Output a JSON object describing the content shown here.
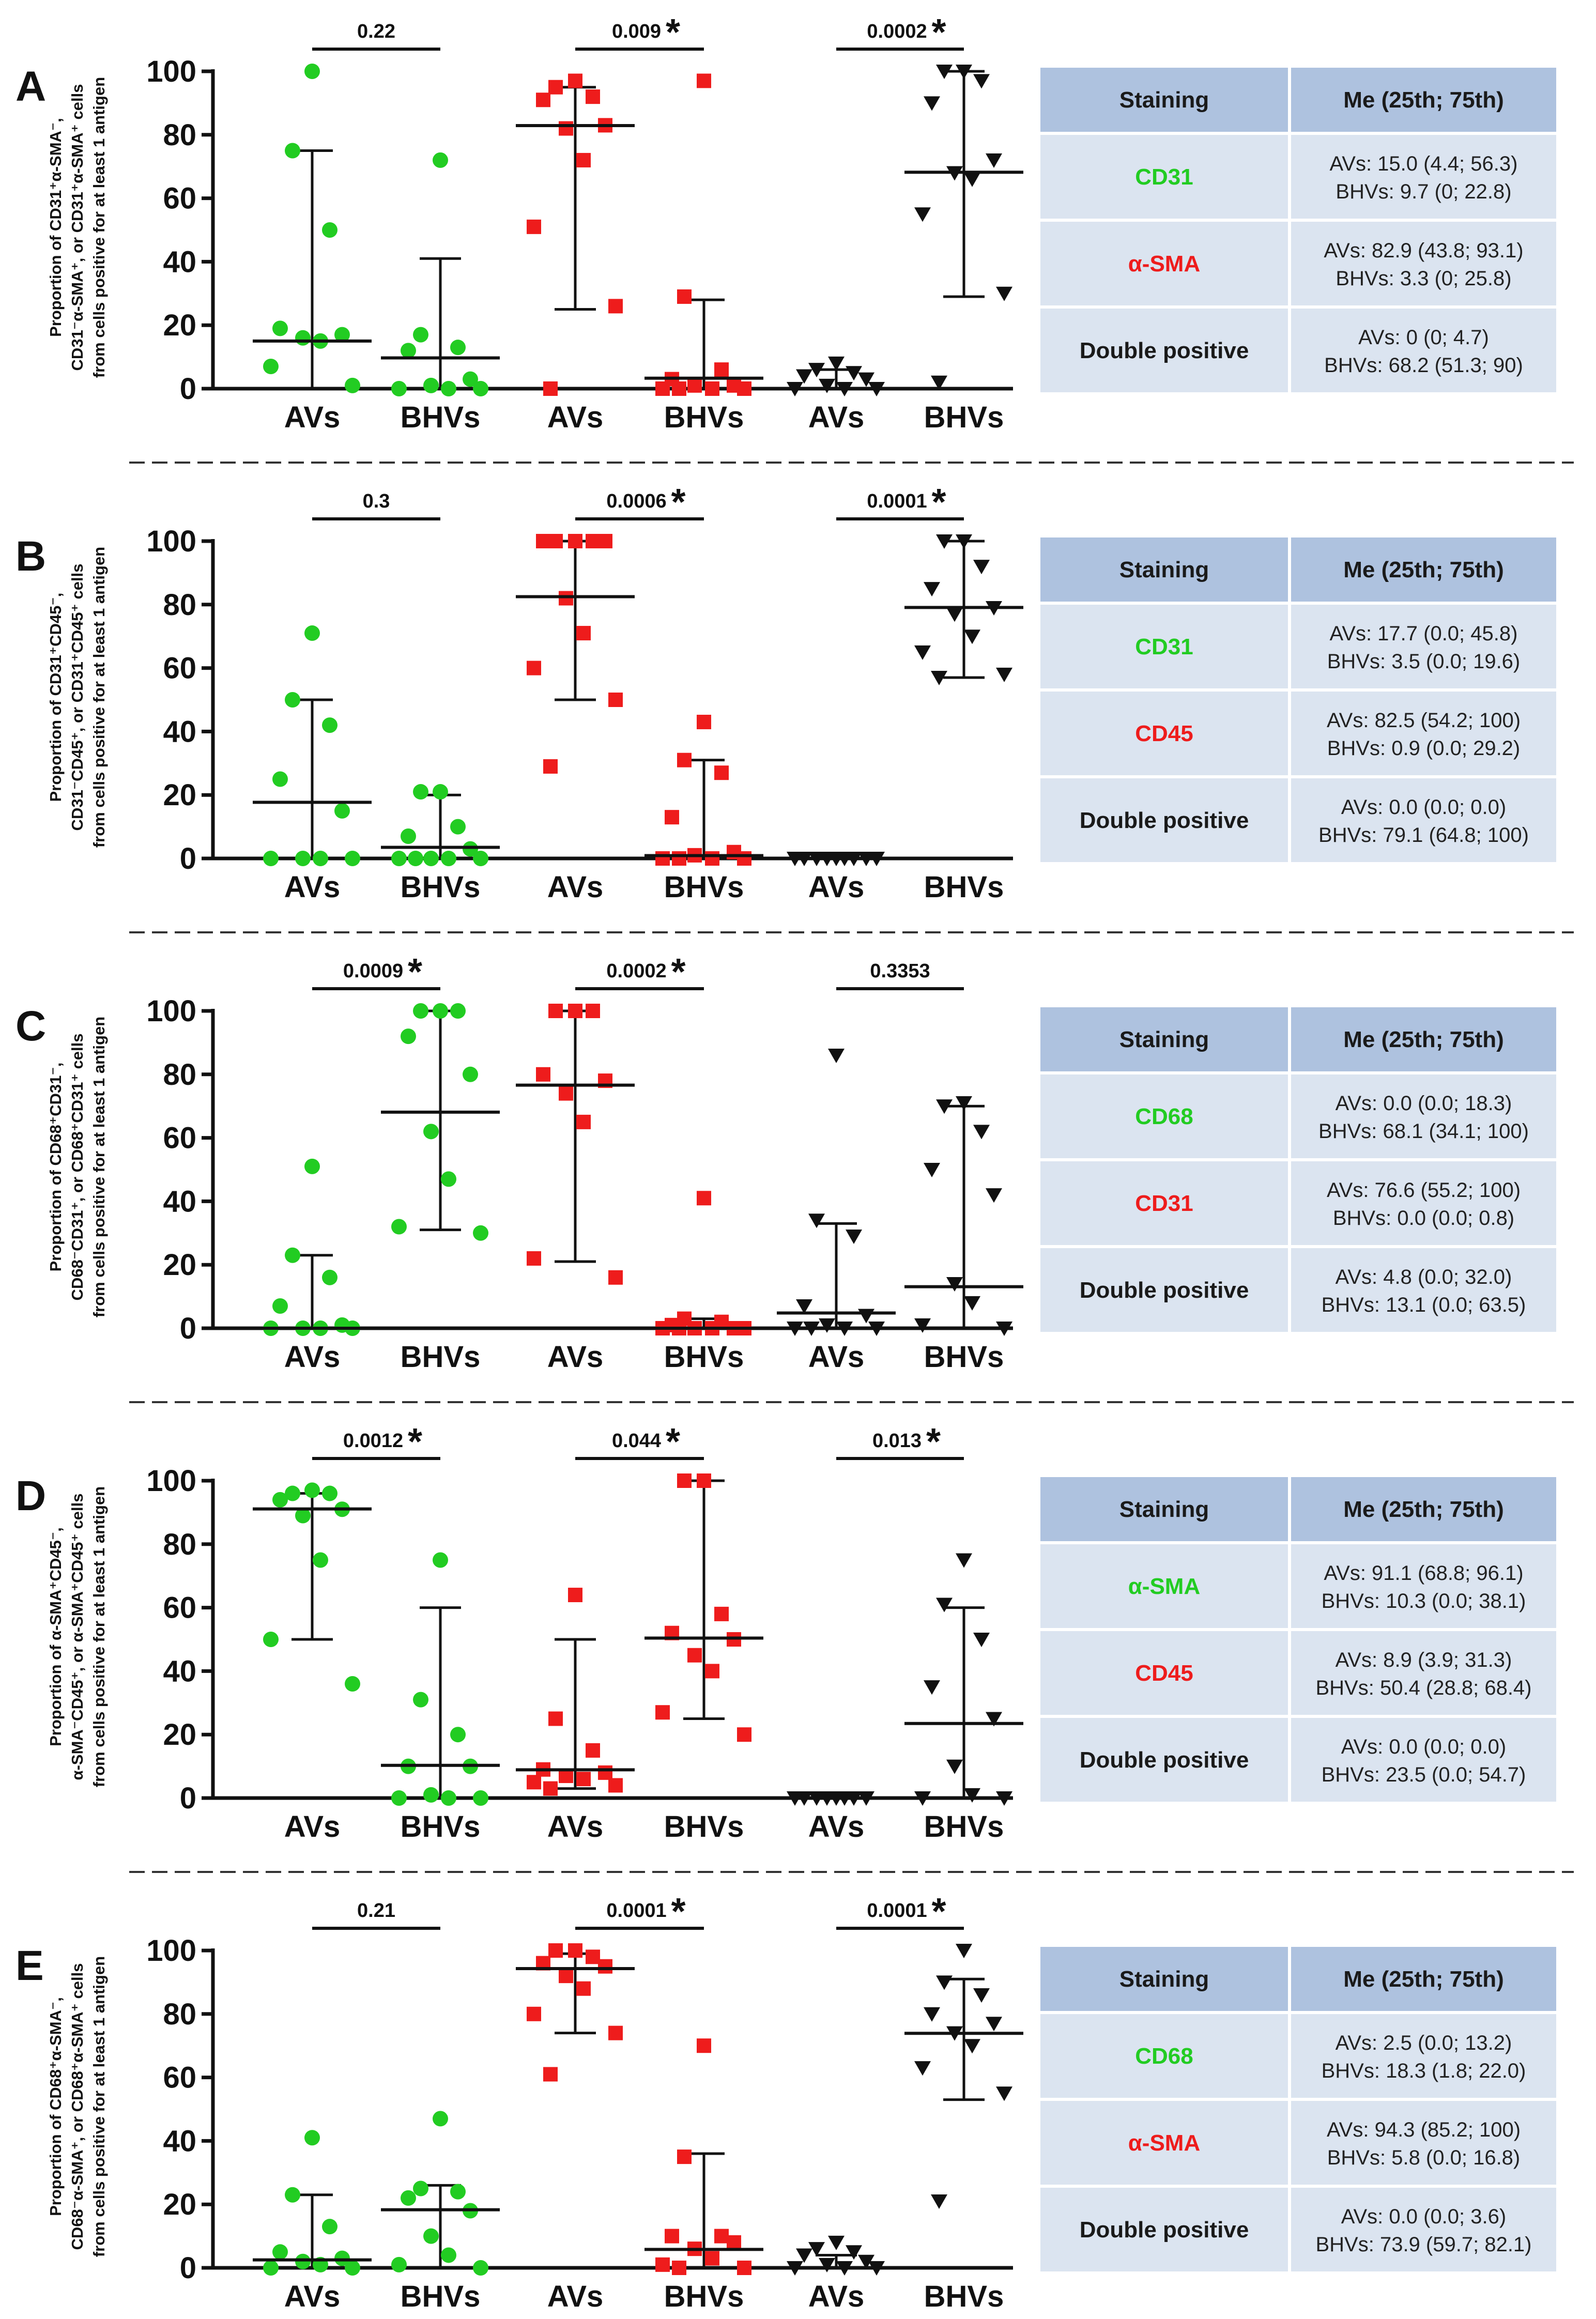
{
  "colors": {
    "group1": "#22cc22",
    "group2": "#ee1c1c",
    "group3": "#111111",
    "table_header": "#aec2df",
    "table_cell": "#dbe4f0",
    "table_border": "#ffffff",
    "stain1_text": "#22cc22",
    "stain2_text": "#ee1c1c",
    "stain3_text": "#1a1a1a"
  },
  "table_header": {
    "staining": "Staining",
    "median": "Me (25th; 75th)"
  },
  "chart_data": [
    {
      "type": "scatter",
      "panel": "A",
      "ylabel_lines": [
        "Proportion of CD31⁺α-SMA⁻,",
        "CD31⁻α-SMA⁺, or CD31⁺α-SMA⁺ cells",
        "from cells positive for at least 1 antigen"
      ],
      "ylim": [
        0,
        100
      ],
      "yticks": [
        0,
        20,
        40,
        60,
        80,
        100
      ],
      "categories": [
        "AVs",
        "BHVs",
        "AVs",
        "BHVs",
        "AVs",
        "BHVs"
      ],
      "comparisons": [
        {
          "p": "0.22",
          "star": ""
        },
        {
          "p": "0.009",
          "star": "*"
        },
        {
          "p": "0.0002",
          "star": "*"
        }
      ],
      "series": [
        {
          "marker": "circle",
          "color": "#22cc22",
          "points": [
            100,
            75,
            50,
            19,
            17,
            16,
            15,
            7,
            1
          ],
          "median": 15.0,
          "q1": 4.4,
          "q3": 56.3,
          "whisker": [
            0,
            75
          ]
        },
        {
          "marker": "circle",
          "color": "#22cc22",
          "points": [
            72,
            17,
            13,
            12,
            3,
            1,
            0,
            0,
            0
          ],
          "median": 9.7,
          "q1": 0,
          "q3": 22.8,
          "whisker": [
            0,
            41
          ]
        },
        {
          "marker": "square",
          "color": "#ee1c1c",
          "points": [
            97,
            95,
            92,
            91,
            83,
            82,
            72,
            51,
            26,
            0
          ],
          "median": 82.9,
          "q1": 43.8,
          "q3": 93.1,
          "whisker": [
            25,
            95
          ]
        },
        {
          "marker": "square",
          "color": "#ee1c1c",
          "points": [
            97,
            29,
            6,
            3,
            1,
            1,
            0,
            0,
            0,
            0
          ],
          "median": 3.3,
          "q1": 0,
          "q3": 25.8,
          "whisker": [
            0,
            28
          ]
        },
        {
          "marker": "triangle",
          "color": "#111111",
          "points": [
            8,
            6,
            5,
            4,
            3,
            1,
            0,
            0,
            0
          ],
          "median": 0,
          "q1": 0,
          "q3": 4.7,
          "whisker": [
            0,
            6
          ]
        },
        {
          "marker": "triangle",
          "color": "#111111",
          "points": [
            100,
            100,
            97,
            90,
            72,
            68,
            66,
            55,
            30,
            2
          ],
          "median": 68.2,
          "q1": 51.3,
          "q3": 90,
          "whisker": [
            29,
            100
          ]
        }
      ],
      "table": [
        {
          "stain": "CD31",
          "color": "#22cc22",
          "line1": "AVs: 15.0 (4.4; 56.3)",
          "line2": "BHVs: 9.7 (0; 22.8)"
        },
        {
          "stain": "α-SMA",
          "color": "#ee1c1c",
          "line1": "AVs: 82.9 (43.8; 93.1)",
          "line2": "BHVs: 3.3 (0; 25.8)"
        },
        {
          "stain": "Double positive",
          "color": "#1a1a1a",
          "line1": "AVs: 0 (0; 4.7)",
          "line2": "BHVs: 68.2 (51.3; 90)"
        }
      ]
    },
    {
      "type": "scatter",
      "panel": "B",
      "ylabel_lines": [
        "Proportion of CD31⁺CD45⁻,",
        "CD31⁻CD45⁺, or CD31⁺CD45⁺ cells",
        "from cells positive for at least 1 antigen"
      ],
      "ylim": [
        0,
        100
      ],
      "yticks": [
        0,
        20,
        40,
        60,
        80,
        100
      ],
      "categories": [
        "AVs",
        "BHVs",
        "AVs",
        "BHVs",
        "AVs",
        "BHVs"
      ],
      "comparisons": [
        {
          "p": "0.3",
          "star": ""
        },
        {
          "p": "0.0006",
          "star": "*"
        },
        {
          "p": "0.0001",
          "star": "*"
        }
      ],
      "series": [
        {
          "marker": "circle",
          "color": "#22cc22",
          "points": [
            71,
            50,
            42,
            25,
            15,
            0,
            0,
            0,
            0
          ],
          "median": 17.7,
          "q1": 0.0,
          "q3": 45.8,
          "whisker": [
            0,
            50
          ]
        },
        {
          "marker": "circle",
          "color": "#22cc22",
          "points": [
            21,
            21,
            10,
            7,
            3,
            0,
            0,
            0,
            0,
            0
          ],
          "median": 3.5,
          "q1": 0.0,
          "q3": 19.6,
          "whisker": [
            0,
            20
          ]
        },
        {
          "marker": "square",
          "color": "#ee1c1c",
          "points": [
            100,
            100,
            100,
            100,
            100,
            82,
            71,
            60,
            50,
            29
          ],
          "median": 82.5,
          "q1": 54.2,
          "q3": 100,
          "whisker": [
            50,
            100
          ]
        },
        {
          "marker": "square",
          "color": "#ee1c1c",
          "points": [
            43,
            31,
            27,
            13,
            2,
            1,
            0,
            0,
            0,
            0
          ],
          "median": 0.9,
          "q1": 0.0,
          "q3": 29.2,
          "whisker": [
            0,
            31
          ]
        },
        {
          "marker": "triangle",
          "color": "#111111",
          "points": [
            0,
            0,
            0,
            0,
            0,
            0,
            0,
            0,
            0
          ],
          "median": 0.0,
          "q1": 0.0,
          "q3": 0.0,
          "whisker": [
            0,
            0
          ]
        },
        {
          "marker": "triangle",
          "color": "#111111",
          "points": [
            100,
            100,
            92,
            85,
            79,
            77,
            70,
            65,
            58,
            57
          ],
          "median": 79.1,
          "q1": 64.8,
          "q3": 100,
          "whisker": [
            57,
            100
          ]
        }
      ],
      "table": [
        {
          "stain": "CD31",
          "color": "#22cc22",
          "line1": "AVs: 17.7 (0.0; 45.8)",
          "line2": "BHVs: 3.5 (0.0; 19.6)"
        },
        {
          "stain": "CD45",
          "color": "#ee1c1c",
          "line1": "AVs: 82.5 (54.2; 100)",
          "line2": "BHVs: 0.9 (0.0; 29.2)"
        },
        {
          "stain": "Double positive",
          "color": "#1a1a1a",
          "line1": "AVs: 0.0 (0.0; 0.0)",
          "line2": "BHVs: 79.1 (64.8; 100)"
        }
      ]
    },
    {
      "type": "scatter",
      "panel": "C",
      "ylabel_lines": [
        "Proportion of CD68⁺CD31⁻,",
        "CD68⁻CD31⁺, or CD68⁺CD31⁺ cells",
        "from cells positive for at least 1 antigen"
      ],
      "ylim": [
        0,
        100
      ],
      "yticks": [
        0,
        20,
        40,
        60,
        80,
        100
      ],
      "categories": [
        "AVs",
        "BHVs",
        "AVs",
        "BHVs",
        "AVs",
        "BHVs"
      ],
      "comparisons": [
        {
          "p": "0.0009",
          "star": "*"
        },
        {
          "p": "0.0002",
          "star": "*"
        },
        {
          "p": "0.3353",
          "star": ""
        }
      ],
      "series": [
        {
          "marker": "circle",
          "color": "#22cc22",
          "points": [
            51,
            23,
            16,
            7,
            1,
            0,
            0,
            0,
            0
          ],
          "median": 0.0,
          "q1": 0.0,
          "q3": 18.3,
          "whisker": [
            0,
            23
          ]
        },
        {
          "marker": "circle",
          "color": "#22cc22",
          "points": [
            100,
            100,
            100,
            92,
            80,
            62,
            47,
            32,
            30
          ],
          "median": 68.1,
          "q1": 34.1,
          "q3": 100,
          "whisker": [
            31,
            100
          ]
        },
        {
          "marker": "square",
          "color": "#ee1c1c",
          "points": [
            100,
            100,
            100,
            80,
            78,
            74,
            65,
            22,
            16
          ],
          "median": 76.6,
          "q1": 55.2,
          "q3": 100,
          "whisker": [
            21,
            100
          ]
        },
        {
          "marker": "square",
          "color": "#ee1c1c",
          "points": [
            41,
            3,
            2,
            1,
            0,
            0,
            0,
            0,
            0,
            0
          ],
          "median": 0.0,
          "q1": 0.0,
          "q3": 0.8,
          "whisker": [
            0,
            3
          ]
        },
        {
          "marker": "triangle",
          "color": "#111111",
          "points": [
            86,
            34,
            29,
            7,
            4,
            1,
            0,
            0,
            0,
            0
          ],
          "median": 4.8,
          "q1": 0.0,
          "q3": 32.0,
          "whisker": [
            0,
            33
          ]
        },
        {
          "marker": "triangle",
          "color": "#111111",
          "points": [
            71,
            70,
            62,
            50,
            42,
            14,
            8,
            1,
            0
          ],
          "median": 13.1,
          "q1": 0.0,
          "q3": 63.5,
          "whisker": [
            0,
            70
          ]
        }
      ],
      "table": [
        {
          "stain": "CD68",
          "color": "#22cc22",
          "line1": "AVs: 0.0 (0.0; 18.3)",
          "line2": "BHVs: 68.1 (34.1; 100)"
        },
        {
          "stain": "CD31",
          "color": "#ee1c1c",
          "line1": "AVs: 76.6 (55.2; 100)",
          "line2": "BHVs: 0.0 (0.0; 0.8)"
        },
        {
          "stain": "Double positive",
          "color": "#1a1a1a",
          "line1": "AVs: 4.8 (0.0; 32.0)",
          "line2": "BHVs: 13.1 (0.0; 63.5)"
        }
      ]
    },
    {
      "type": "scatter",
      "panel": "D",
      "ylabel_lines": [
        "Proportion of α-SMA⁺CD45⁻,",
        "α-SMA⁻CD45⁺, or α-SMA⁺CD45⁺ cells",
        "from cells positive for at least 1 antigen"
      ],
      "ylim": [
        0,
        100
      ],
      "yticks": [
        0,
        20,
        40,
        60,
        80,
        100
      ],
      "categories": [
        "AVs",
        "BHVs",
        "AVs",
        "BHVs",
        "AVs",
        "BHVs"
      ],
      "comparisons": [
        {
          "p": "0.0012",
          "star": "*"
        },
        {
          "p": "0.044",
          "star": "*"
        },
        {
          "p": "0.013",
          "star": "*"
        }
      ],
      "series": [
        {
          "marker": "circle",
          "color": "#22cc22",
          "points": [
            97,
            96,
            96,
            94,
            91,
            89,
            75,
            50,
            36
          ],
          "median": 91.1,
          "q1": 68.8,
          "q3": 96.1,
          "whisker": [
            50,
            96
          ]
        },
        {
          "marker": "circle",
          "color": "#22cc22",
          "points": [
            75,
            31,
            20,
            10,
            10,
            1,
            0,
            0,
            0
          ],
          "median": 10.3,
          "q1": 0.0,
          "q3": 38.1,
          "whisker": [
            0,
            60
          ]
        },
        {
          "marker": "square",
          "color": "#ee1c1c",
          "points": [
            64,
            25,
            15,
            9,
            8,
            7,
            6,
            5,
            4,
            3
          ],
          "median": 8.9,
          "q1": 3.9,
          "q3": 31.3,
          "whisker": [
            3,
            50
          ]
        },
        {
          "marker": "square",
          "color": "#ee1c1c",
          "points": [
            100,
            100,
            58,
            52,
            50,
            45,
            40,
            27,
            20
          ],
          "median": 50.4,
          "q1": 28.8,
          "q3": 68.4,
          "whisker": [
            25,
            100
          ]
        },
        {
          "marker": "triangle",
          "color": "#111111",
          "points": [
            0,
            0,
            0,
            0,
            0,
            0,
            0,
            0
          ],
          "median": 0.0,
          "q1": 0.0,
          "q3": 0.0,
          "whisker": [
            0,
            0
          ]
        },
        {
          "marker": "triangle",
          "color": "#111111",
          "points": [
            75,
            61,
            50,
            35,
            25,
            10,
            1,
            0,
            0
          ],
          "median": 23.5,
          "q1": 0.0,
          "q3": 54.7,
          "whisker": [
            0,
            60
          ]
        }
      ],
      "table": [
        {
          "stain": "α-SMA",
          "color": "#22cc22",
          "line1": "AVs: 91.1 (68.8; 96.1)",
          "line2": "BHVs: 10.3 (0.0; 38.1)"
        },
        {
          "stain": "CD45",
          "color": "#ee1c1c",
          "line1": "AVs: 8.9 (3.9; 31.3)",
          "line2": "BHVs: 50.4 (28.8; 68.4)"
        },
        {
          "stain": "Double positive",
          "color": "#1a1a1a",
          "line1": "AVs: 0.0 (0.0; 0.0)",
          "line2": "BHVs: 23.5 (0.0; 54.7)"
        }
      ]
    },
    {
      "type": "scatter",
      "panel": "E",
      "ylabel_lines": [
        "Proportion of CD68⁺α-SMA⁻,",
        "CD68⁻α-SMA⁺, or CD68⁺α-SMA⁺ cells",
        "from cells positive for at least 1 antigen"
      ],
      "ylim": [
        0,
        100
      ],
      "yticks": [
        0,
        20,
        40,
        60,
        80,
        100
      ],
      "categories": [
        "AVs",
        "BHVs",
        "AVs",
        "BHVs",
        "AVs",
        "BHVs"
      ],
      "comparisons": [
        {
          "p": "0.21",
          "star": ""
        },
        {
          "p": "0.0001",
          "star": "*"
        },
        {
          "p": "0.0001",
          "star": "*"
        }
      ],
      "series": [
        {
          "marker": "circle",
          "color": "#22cc22",
          "points": [
            41,
            23,
            13,
            5,
            3,
            2,
            1,
            0,
            0
          ],
          "median": 2.5,
          "q1": 0.0,
          "q3": 13.2,
          "whisker": [
            0,
            23
          ]
        },
        {
          "marker": "circle",
          "color": "#22cc22",
          "points": [
            47,
            25,
            24,
            22,
            18,
            10,
            4,
            1,
            0
          ],
          "median": 18.3,
          "q1": 1.8,
          "q3": 22.0,
          "whisker": [
            0,
            26
          ]
        },
        {
          "marker": "square",
          "color": "#ee1c1c",
          "points": [
            100,
            100,
            98,
            96,
            95,
            92,
            88,
            80,
            74,
            61
          ],
          "median": 94.3,
          "q1": 85.2,
          "q3": 100,
          "whisker": [
            74,
            99
          ]
        },
        {
          "marker": "square",
          "color": "#ee1c1c",
          "points": [
            70,
            35,
            10,
            10,
            8,
            6,
            3,
            1,
            0,
            0
          ],
          "median": 5.8,
          "q1": 0.0,
          "q3": 16.8,
          "whisker": [
            0,
            36
          ]
        },
        {
          "marker": "triangle",
          "color": "#111111",
          "points": [
            8,
            6,
            5,
            4,
            2,
            1,
            0,
            0,
            0
          ],
          "median": 0.0,
          "q1": 0.0,
          "q3": 3.6,
          "whisker": [
            0,
            4
          ]
        },
        {
          "marker": "triangle",
          "color": "#111111",
          "points": [
            100,
            90,
            86,
            80,
            77,
            74,
            70,
            63,
            55,
            21
          ],
          "median": 73.9,
          "q1": 59.7,
          "q3": 82.1,
          "whisker": [
            53,
            91
          ]
        }
      ],
      "table": [
        {
          "stain": "CD68",
          "color": "#22cc22",
          "line1": "AVs: 2.5 (0.0; 13.2)",
          "line2": "BHVs: 18.3 (1.8; 22.0)"
        },
        {
          "stain": "α-SMA",
          "color": "#ee1c1c",
          "line1": "AVs: 94.3 (85.2; 100)",
          "line2": "BHVs: 5.8 (0.0; 16.8)"
        },
        {
          "stain": "Double positive",
          "color": "#1a1a1a",
          "line1": "AVs: 0.0 (0.0; 3.6)",
          "line2": "BHVs: 73.9 (59.7; 82.1)"
        }
      ]
    }
  ]
}
